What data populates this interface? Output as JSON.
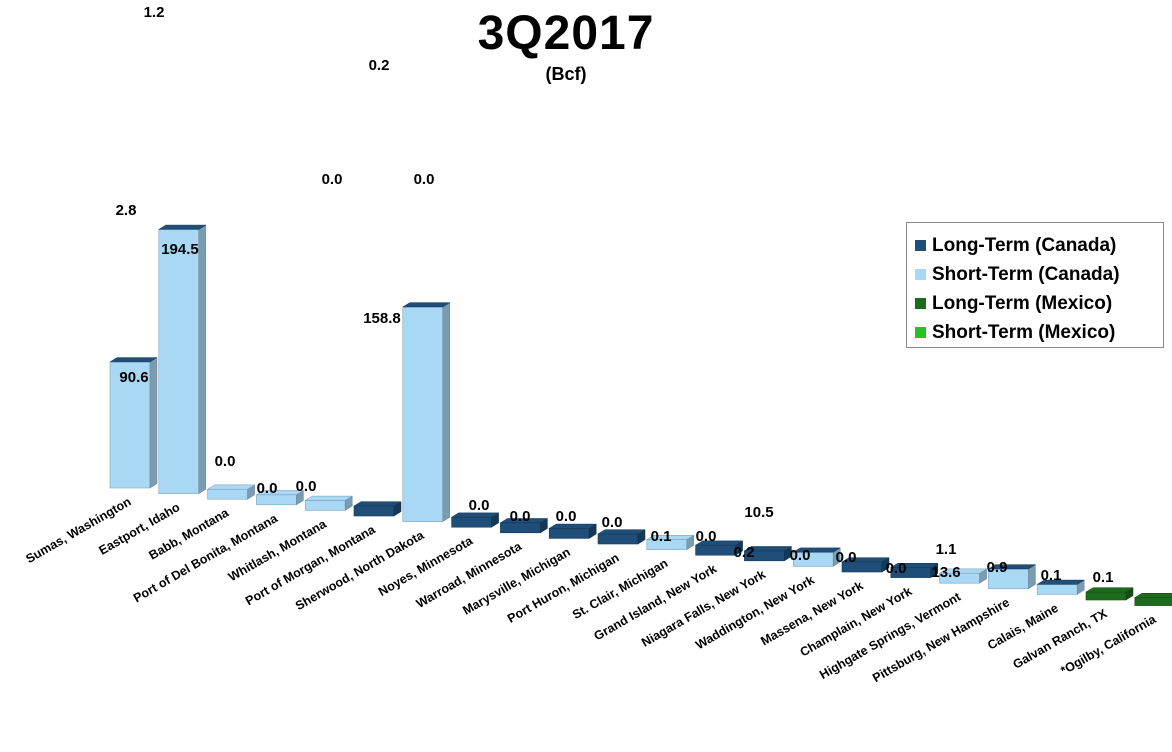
{
  "title": "3Q2017",
  "unit": "(Bcf)",
  "colors": {
    "long_term_canada": "#1f4e79",
    "short_term_canada": "#a9d8f5",
    "long_term_mexico": "#1e6b1e",
    "short_term_mexico": "#22c322"
  },
  "legend": [
    {
      "label": "Long-Term (Canada)",
      "color_key": "long_term_canada"
    },
    {
      "label": "Short-Term (Canada)",
      "color_key": "short_term_canada"
    },
    {
      "label": "Long-Term (Mexico)",
      "color_key": "long_term_mexico"
    },
    {
      "label": "Short-Term (Mexico)",
      "color_key": "short_term_mexico"
    }
  ],
  "chart_data": {
    "type": "bar",
    "title": "3Q2017",
    "subtitle": "(Bcf)",
    "xlabel": "",
    "ylabel": "",
    "legend_position": "right",
    "categories": [
      "Sumas, Washington",
      "Eastport, Idaho",
      "Babb, Montana",
      "Port of Del Bonita, Montana",
      "Whitlash, Montana",
      "Port of Morgan, Montana",
      "Sherwood, North Dakota",
      "Noyes, Minnesota",
      "Warroad, Minnesota",
      "Marysville, Michigan",
      "Port Huron, Michigan",
      "St. Clair, Michigan",
      "Grand Island, New York",
      "Niagara Falls, New York",
      "Waddington, New York",
      "Massena, New York",
      "Champlain, New York",
      "Highgate Springs, Vermont",
      "Pittsburg, New Hampshire",
      "Calais, Maine",
      "Galvan Ranch, TX",
      "*Ogilby, California"
    ],
    "series": [
      {
        "name": "Long-Term (Canada)",
        "values": [
          2.8,
          1.2,
          null,
          null,
          null,
          0.0,
          0.2,
          0.0,
          0.0,
          0.0,
          0.0,
          null,
          0.1,
          0.0,
          10.5,
          0.0,
          0.0,
          null,
          1.1,
          0.9,
          null,
          null
        ]
      },
      {
        "name": "Short-Term (Canada)",
        "values": [
          90.6,
          194.5,
          0.0,
          0.0,
          0.0,
          null,
          158.8,
          null,
          null,
          null,
          null,
          0.0,
          null,
          null,
          0.2,
          null,
          null,
          0.0,
          13.6,
          null,
          null,
          null
        ]
      },
      {
        "name": "Long-Term (Mexico)",
        "values": [
          null,
          null,
          null,
          null,
          null,
          null,
          null,
          null,
          null,
          null,
          null,
          null,
          null,
          null,
          null,
          null,
          null,
          null,
          null,
          null,
          0.1,
          0.1
        ]
      },
      {
        "name": "Short-Term (Mexico)",
        "values": [
          null,
          null,
          null,
          null,
          null,
          null,
          null,
          null,
          null,
          null,
          null,
          null,
          null,
          null,
          null,
          null,
          null,
          null,
          null,
          null,
          null,
          null
        ]
      }
    ],
    "value_labels": [
      [
        "2.8",
        "90.6"
      ],
      [
        "1.2",
        "194.5"
      ],
      [
        "0.0"
      ],
      [
        "0.0"
      ],
      [
        "0.0"
      ],
      [
        "0.0"
      ],
      [
        "0.2",
        "158.8"
      ],
      [
        "0.0"
      ],
      [
        "0.0"
      ],
      [
        "0.0"
      ],
      [
        "0.0"
      ],
      [
        "0.0"
      ],
      [
        "0.1"
      ],
      [
        "0.0"
      ],
      [
        "10.5",
        "0.2"
      ],
      [
        "0.0"
      ],
      [
        "0.0"
      ],
      [
        "0.0"
      ],
      [
        "1.1",
        "13.6"
      ],
      [
        "0.9"
      ],
      [
        "0.1"
      ],
      [
        "0.1"
      ]
    ],
    "grid": false
  }
}
